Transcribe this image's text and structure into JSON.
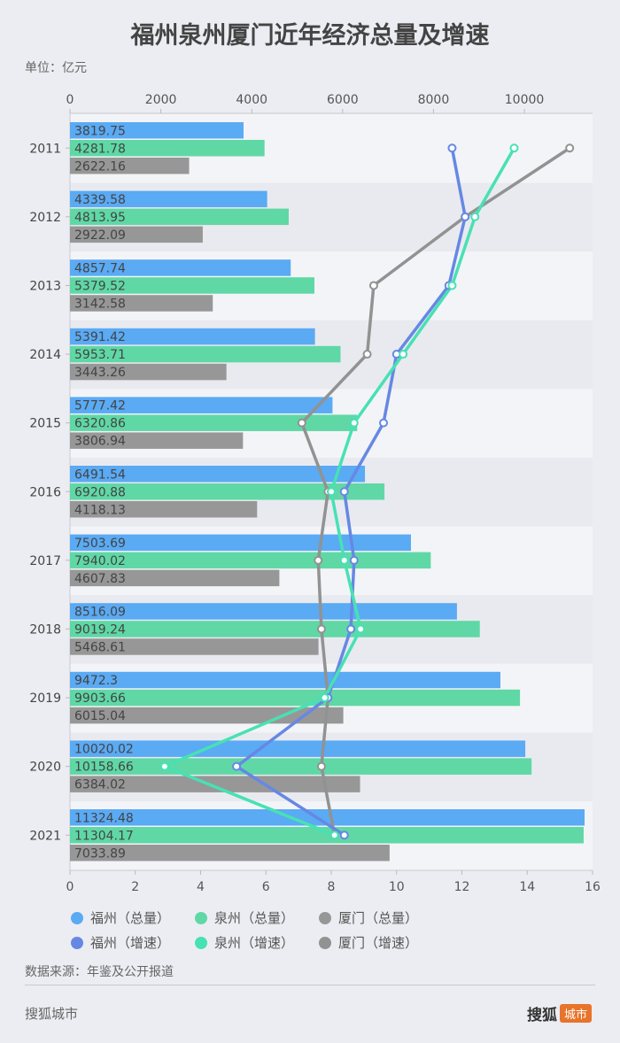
{
  "title": "福州泉州厦门近年经济总量及增速",
  "unit_label": "单位：亿元",
  "source": "数据来源：年鉴及公开报道",
  "footer": {
    "left": "搜狐城市",
    "brand": "搜狐",
    "badge": "城市"
  },
  "colors": {
    "fuzhou_total": "#5aaaf4",
    "quanzhou_total": "#5fd8a6",
    "xiamen_total": "#979797",
    "fuzhou_growth": "#6688e4",
    "quanzhou_growth": "#48e1b3",
    "xiamen_growth": "#929292"
  },
  "legend": [
    {
      "label": "福州（总量）",
      "color": "#5aaaf4"
    },
    {
      "label": "泉州（总量）",
      "color": "#5fd8a6"
    },
    {
      "label": "厦门（总量）",
      "color": "#979797"
    },
    {
      "label": "福州（增速）",
      "color": "#6688e4"
    },
    {
      "label": "泉州（增速）",
      "color": "#48e1b3"
    },
    {
      "label": "厦门（增速）",
      "color": "#929292"
    }
  ],
  "chart_data": {
    "type": "bar",
    "orientation": "horizontal",
    "categories": [
      "2011",
      "2012",
      "2013",
      "2014",
      "2015",
      "2016",
      "2017",
      "2018",
      "2019",
      "2020",
      "2021"
    ],
    "top_axis": {
      "ticks": [
        0,
        2000,
        4000,
        6000,
        8000,
        10000
      ],
      "range": [
        0,
        11500
      ]
    },
    "bottom_axis": {
      "ticks": [
        0,
        2,
        4,
        6,
        8,
        10,
        12,
        14,
        16
      ],
      "range": [
        0,
        16
      ]
    },
    "series": [
      {
        "name": "福州（总量）",
        "kind": "bar",
        "values": [
          3819.75,
          4339.58,
          4857.74,
          5391.42,
          5777.42,
          6491.54,
          7503.69,
          8516.09,
          9472.3,
          10020.02,
          11324.48
        ],
        "labels": [
          "3819.75",
          "4339.58",
          "4857.74",
          "5391.42",
          "5777.42",
          "6491.54",
          "7503.69",
          "8516.09",
          "9472.3",
          "10020.02",
          "11324.48"
        ]
      },
      {
        "name": "泉州（总量）",
        "kind": "bar",
        "values": [
          4281.78,
          4813.95,
          5379.52,
          5953.71,
          6320.86,
          6920.88,
          7940.02,
          9019.24,
          9903.66,
          10158.66,
          11304.17
        ],
        "labels": [
          "4281.78",
          "4813.95",
          "5379.52",
          "5953.71",
          "6320.86",
          "6920.88",
          "7940.02",
          "9019.24",
          "9903.66",
          "10158.66",
          "11304.17"
        ]
      },
      {
        "name": "厦门（总量）",
        "kind": "bar",
        "values": [
          2622.16,
          2922.09,
          3142.58,
          3443.26,
          3806.94,
          4118.13,
          4607.83,
          5468.61,
          6015.04,
          6384.02,
          7033.89
        ],
        "labels": [
          "2622.16",
          "2922.09",
          "3142.58",
          "3443.26",
          "3806.94",
          "4118.13",
          "4607.83",
          "5468.61",
          "6015.04",
          "6384.02",
          "7033.89"
        ]
      },
      {
        "name": "福州（增速）",
        "kind": "line",
        "values": [
          11.7,
          12.1,
          11.6,
          10.0,
          9.6,
          8.4,
          8.7,
          8.6,
          7.9,
          5.1,
          8.4
        ]
      },
      {
        "name": "泉州（增速）",
        "kind": "line",
        "values": [
          13.6,
          12.4,
          11.7,
          10.2,
          8.7,
          8.0,
          8.4,
          8.9,
          7.8,
          2.9,
          8.1
        ]
      },
      {
        "name": "厦门（增速）",
        "kind": "line",
        "values": [
          15.3,
          12.1,
          9.3,
          9.1,
          7.1,
          7.9,
          7.6,
          7.7,
          7.9,
          7.7,
          8.1
        ]
      }
    ]
  }
}
